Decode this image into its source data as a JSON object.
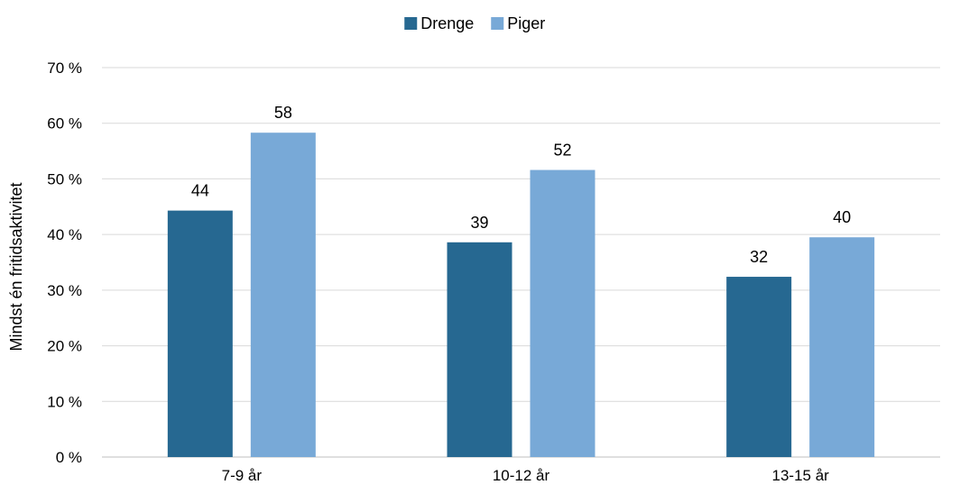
{
  "chart_data": {
    "type": "bar",
    "categories": [
      "7-9 år",
      "10-12 år",
      "13-15 år"
    ],
    "series": [
      {
        "name": "Drenge",
        "values": [
          44.3,
          38.6,
          32.4
        ],
        "labels": [
          "44",
          "39",
          "32"
        ],
        "color": "#266891"
      },
      {
        "name": "Piger",
        "values": [
          58.3,
          51.6,
          39.5
        ],
        "labels": [
          "58",
          "52",
          "40"
        ],
        "color": "#78a9d7"
      }
    ],
    "title": "",
    "xlabel": "",
    "ylabel": "Mindst én fritidsaktivitet",
    "ylim": [
      0,
      70
    ],
    "yticks": [
      0,
      10,
      20,
      30,
      40,
      50,
      60,
      70
    ],
    "ytick_labels": [
      "0 %",
      "10 %",
      "20 %",
      "30 %",
      "40 %",
      "50 %",
      "60 %",
      "70 %"
    ],
    "grid": true,
    "legend_position": "top-center"
  }
}
